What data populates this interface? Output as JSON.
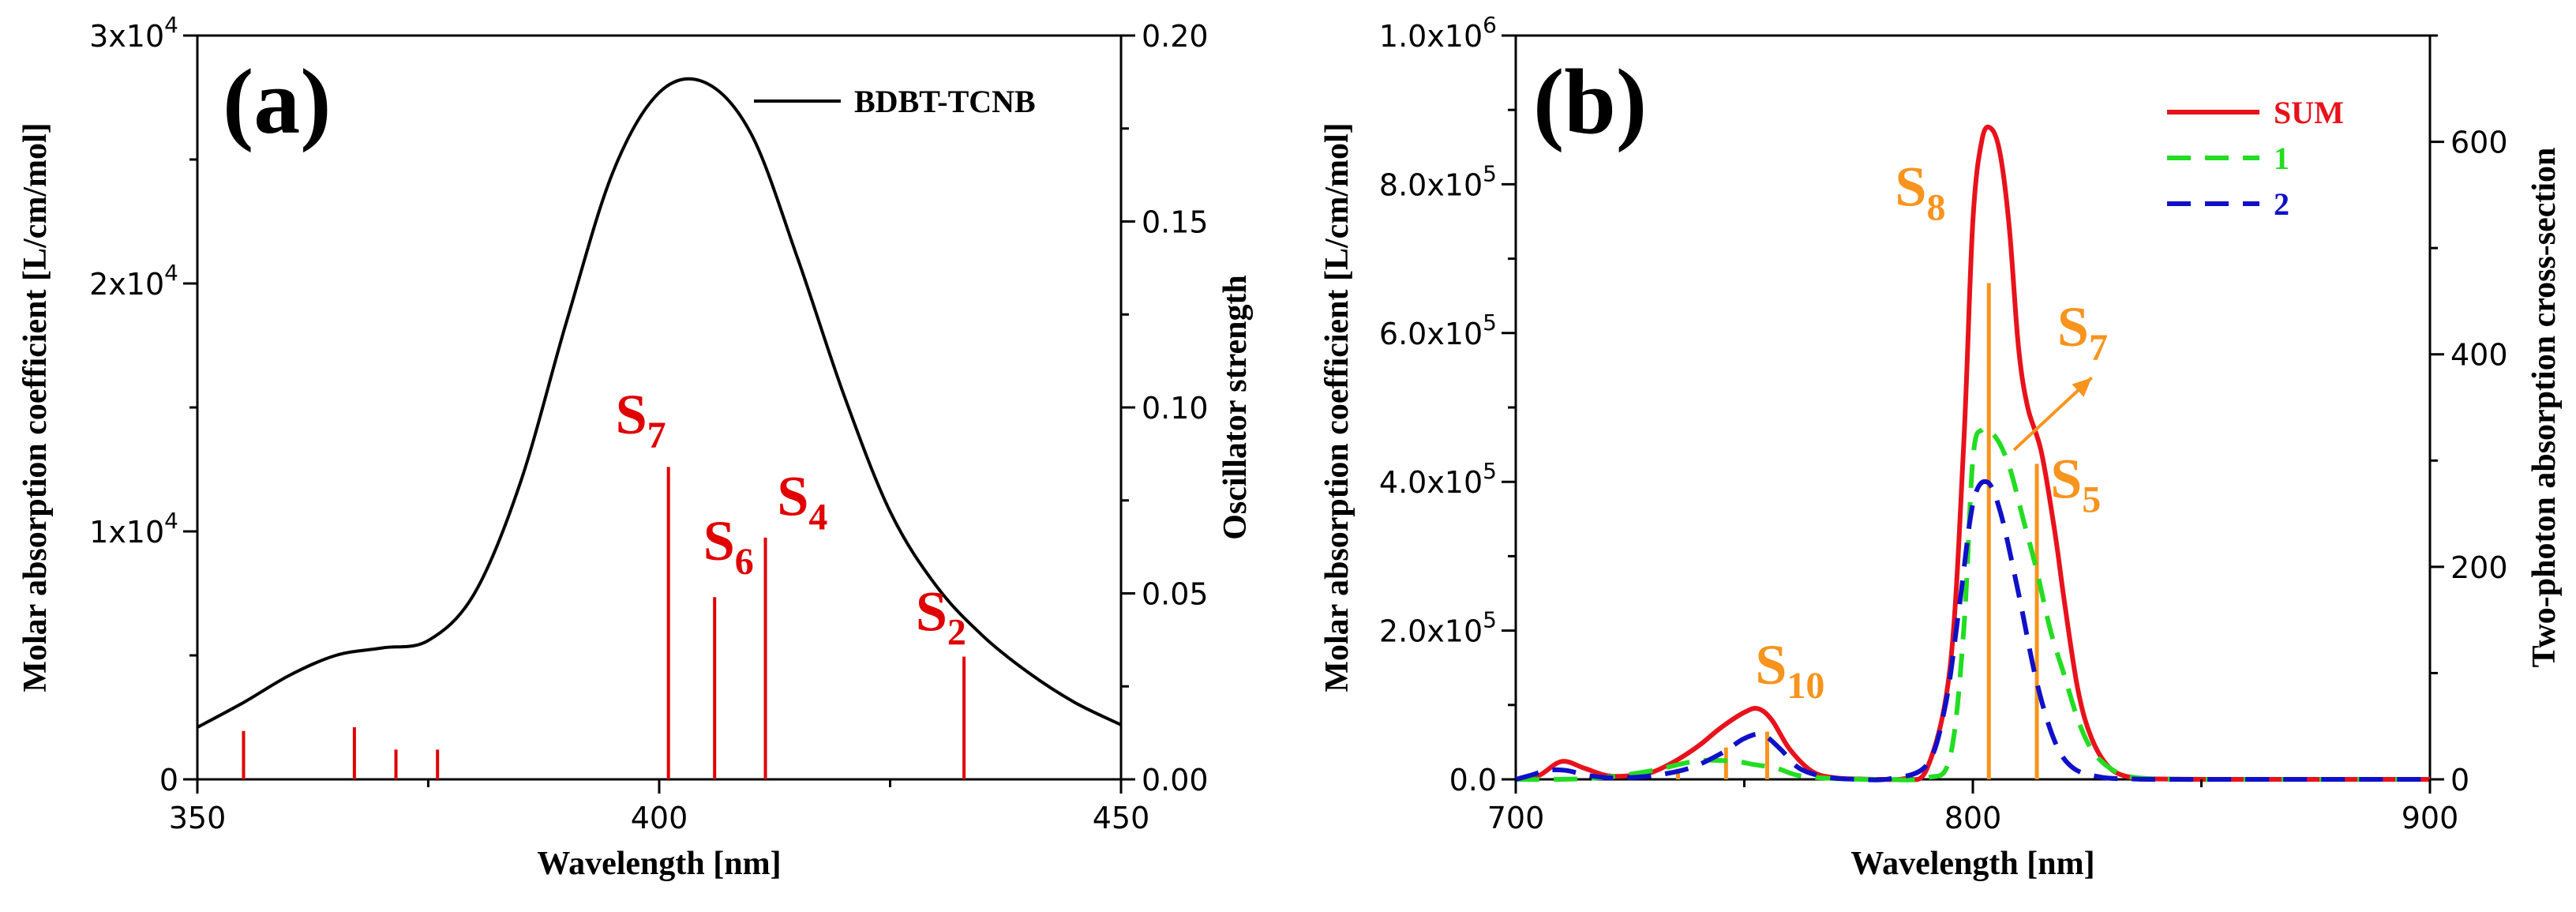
{
  "chart_data": [
    {
      "type": "line",
      "panel": "(a)",
      "xlabel": "Wavelength [nm]",
      "ylabel": "Molar absorption coefficient [L/cm/mol]",
      "y2label": "Oscillator strength",
      "xlim": [
        350,
        450
      ],
      "ylim": [
        0,
        30000
      ],
      "y2lim": [
        0,
        0.2
      ],
      "xticks": [
        "350",
        "400",
        "450"
      ],
      "yticks": [
        {
          "value": 0,
          "base": "0",
          "exp": ""
        },
        {
          "value": 10000,
          "base": "1x10",
          "exp": "4"
        },
        {
          "value": 20000,
          "base": "2x10",
          "exp": "4"
        },
        {
          "value": 30000,
          "base": "3x10",
          "exp": "4"
        }
      ],
      "y2ticks": [
        "0.00",
        "0.05",
        "0.10",
        "0.15",
        "0.20"
      ],
      "legend": [
        {
          "name": "BDBT-TCNB",
          "color": "#000000",
          "style": "solid"
        }
      ],
      "series": [
        {
          "name": "BDBT-TCNB",
          "color": "#000000",
          "x": [
            350,
            355,
            360,
            365,
            370,
            375,
            380,
            385,
            390,
            395,
            400,
            405,
            410,
            415,
            420,
            425,
            430,
            435,
            440,
            445,
            450
          ],
          "y": [
            2100,
            3100,
            4200,
            5000,
            5300,
            5600,
            7500,
            12000,
            18500,
            24500,
            27700,
            28100,
            26000,
            21000,
            15500,
            10800,
            7800,
            5800,
            4300,
            3100,
            2200
          ]
        }
      ],
      "sticks": {
        "color": "#e00000",
        "axis": "y2",
        "x": [
          355,
          367,
          371.5,
          376,
          401,
          406,
          411.5,
          433
        ],
        "f": [
          0.013,
          0.014,
          0.008,
          0.008,
          0.084,
          0.049,
          0.065,
          0.033
        ]
      },
      "annotations": [
        {
          "main": "S",
          "sub": "7",
          "x": 398,
          "f": 0.093,
          "color": "#e00000"
        },
        {
          "main": "S",
          "sub": "6",
          "x": 407.5,
          "f": 0.059,
          "color": "#e00000"
        },
        {
          "main": "S",
          "sub": "4",
          "x": 415.5,
          "f": 0.071,
          "color": "#e00000"
        },
        {
          "main": "S",
          "sub": "2",
          "x": 430.5,
          "f": 0.04,
          "color": "#e00000"
        }
      ]
    },
    {
      "type": "line",
      "panel": "(b)",
      "xlabel": "Wavelength [nm]",
      "ylabel": "Molar absorption coefficient [L/cm/mol]",
      "y2label": "Two-photon absorption cross-section",
      "xlim": [
        700,
        900
      ],
      "ylim": [
        0,
        1000000
      ],
      "y2lim": [
        0,
        700
      ],
      "xticks": [
        "700",
        "800",
        "900"
      ],
      "yticks": [
        {
          "value": 0,
          "base": "0.0",
          "exp": ""
        },
        {
          "value": 200000,
          "base": "2.0x10",
          "exp": "5"
        },
        {
          "value": 400000,
          "base": "4.0x10",
          "exp": "5"
        },
        {
          "value": 600000,
          "base": "6.0x10",
          "exp": "5"
        },
        {
          "value": 800000,
          "base": "8.0x10",
          "exp": "5"
        },
        {
          "value": 1000000,
          "base": "1.0x10",
          "exp": "6"
        }
      ],
      "y2ticks": [
        "0",
        "200",
        "400",
        "600"
      ],
      "legend": [
        {
          "name": "SUM",
          "color": "#e8121c",
          "style": "solid"
        },
        {
          "name": "1",
          "color": "#22dd22",
          "style": "dashed"
        },
        {
          "name": "2",
          "color": "#1010c8",
          "style": "dashed"
        }
      ],
      "series": [
        {
          "name": "SUM",
          "color": "#e8121c",
          "style": "solid",
          "x": [
            700,
            705,
            710,
            715,
            720,
            725,
            730,
            735,
            740,
            745,
            750,
            753,
            756,
            760,
            765,
            770,
            775,
            780,
            785,
            790,
            795,
            798,
            800,
            802,
            804,
            806,
            808,
            810,
            812,
            815,
            818,
            820,
            823,
            826,
            830,
            835,
            840,
            850,
            860,
            880,
            900
          ],
          "y": [
            0,
            5000,
            24000,
            15000,
            5000,
            5000,
            10000,
            25000,
            45000,
            70000,
            90000,
            95000,
            80000,
            40000,
            10000,
            2000,
            500,
            0,
            1000,
            15000,
            150000,
            450000,
            750000,
            860000,
            875000,
            840000,
            740000,
            580000,
            500000,
            440000,
            330000,
            240000,
            120000,
            55000,
            15000,
            2000,
            500,
            0,
            0,
            0,
            0
          ]
        },
        {
          "name": "1",
          "color": "#22dd22",
          "style": "dashed",
          "x": [
            700,
            710,
            720,
            730,
            740,
            748,
            752,
            757,
            762,
            770,
            780,
            790,
            795,
            798,
            800,
            802,
            805,
            808,
            811,
            814,
            817,
            820,
            823,
            826,
            830,
            835,
            845,
            860,
            900
          ],
          "y": [
            0,
            0,
            3000,
            12000,
            25000,
            24000,
            20000,
            15000,
            5000,
            1000,
            0,
            2000,
            30000,
            200000,
            430000,
            470000,
            460000,
            420000,
            350000,
            280000,
            200000,
            140000,
            80000,
            40000,
            15000,
            3000,
            0,
            0,
            0
          ]
        },
        {
          "name": "2",
          "color": "#1010c8",
          "style": "dashed",
          "x": [
            700,
            703,
            707,
            711,
            716,
            722,
            730,
            738,
            745,
            750,
            754,
            758,
            762,
            768,
            775,
            782,
            790,
            794,
            797,
            800,
            803,
            806,
            810,
            814,
            818,
            822,
            828,
            835,
            845,
            900
          ],
          "y": [
            0,
            5000,
            12000,
            12000,
            5000,
            2000,
            5000,
            15000,
            35000,
            55000,
            60000,
            40000,
            15000,
            3000,
            0,
            1000,
            20000,
            100000,
            230000,
            370000,
            400000,
            360000,
            250000,
            130000,
            50000,
            15000,
            3000,
            500,
            0,
            0
          ]
        }
      ],
      "sticks": {
        "color": "#f7941d",
        "axis": "y2",
        "x": [
          735.5,
          746,
          755,
          803.5,
          814
        ],
        "f": [
          10,
          30,
          45,
          467,
          297
        ]
      },
      "annotations": [
        {
          "main": "S",
          "sub": "10",
          "x": 760,
          "f": 90,
          "color": "#f7941d"
        },
        {
          "main": "S",
          "sub": "8",
          "x": 788.5,
          "f": 540,
          "color": "#f7941d"
        },
        {
          "main": "S",
          "sub": "7",
          "x": 824,
          "f": 408,
          "color": "#f7941d"
        },
        {
          "main": "S",
          "sub": "5",
          "x": 822.5,
          "f": 265,
          "color": "#f7941d"
        }
      ],
      "arrow": {
        "from": [
          809,
          310
        ],
        "to": [
          826,
          378
        ],
        "color": "#f7941d"
      }
    }
  ]
}
